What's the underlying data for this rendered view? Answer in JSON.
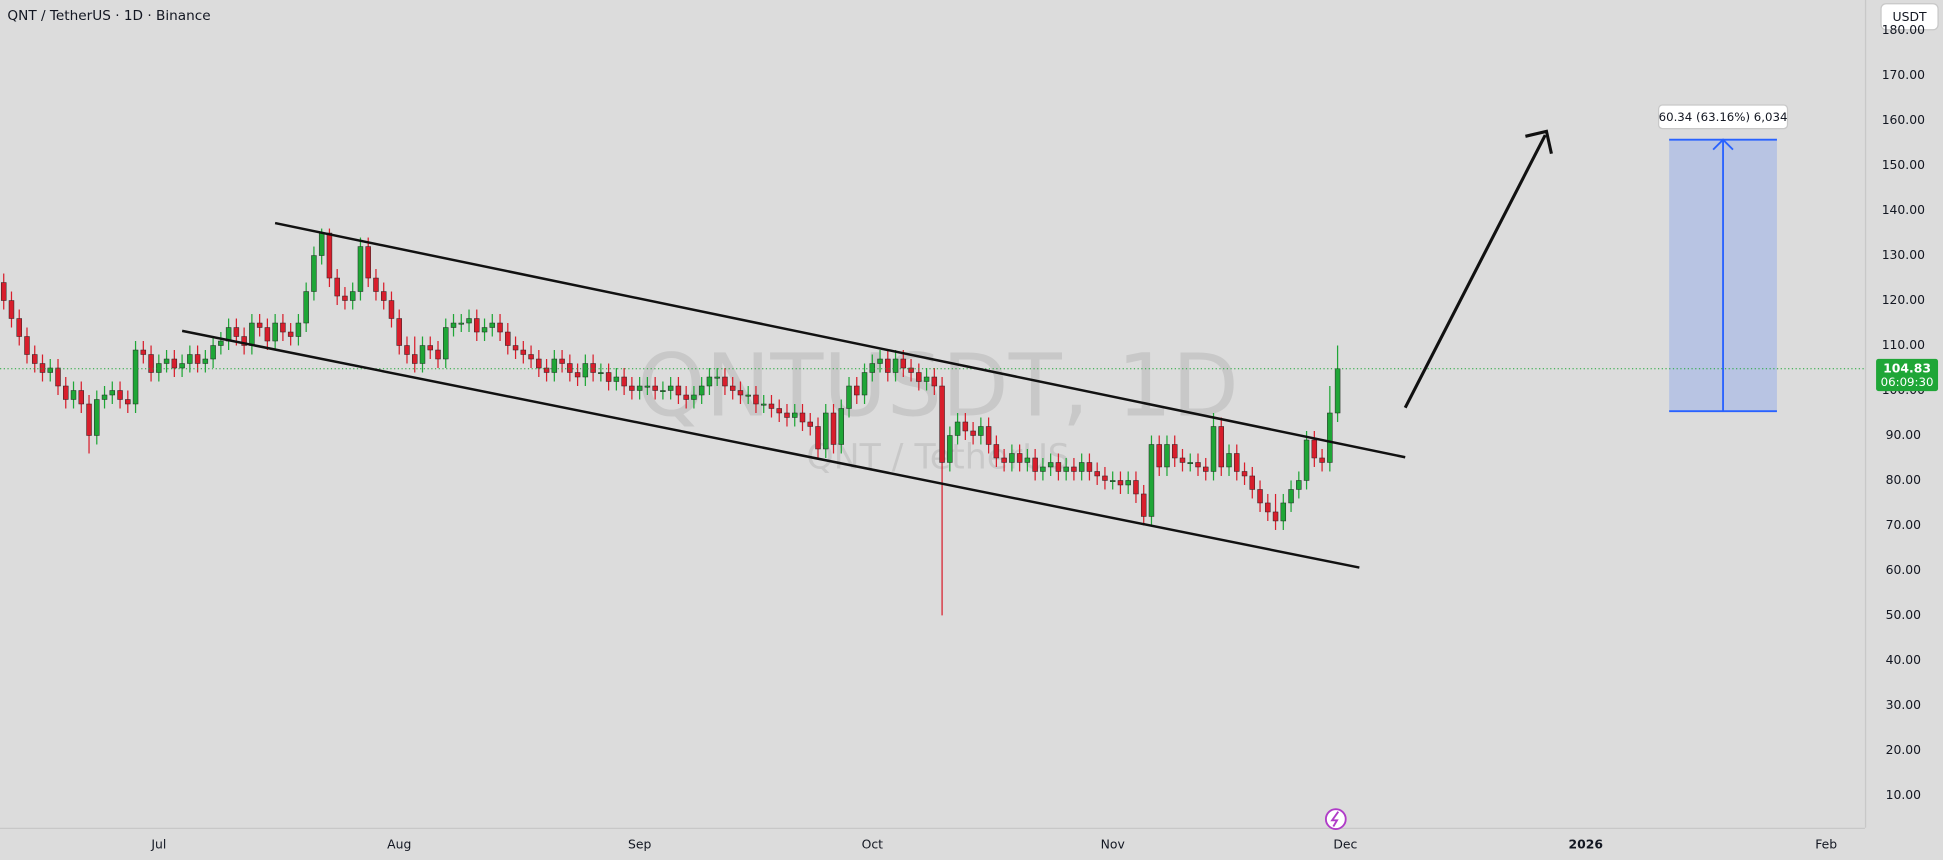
{
  "chart_data": {
    "type": "candlestick",
    "title": "QNT / TetherUS · 1D · Binance",
    "watermark": "QNTUSDT, 1D",
    "watermark_subtitle": "QNT / TetherUS",
    "currency": "USDT",
    "countdown": "06:09:30",
    "up_color": "#1fa637",
    "down_color": "#d81e2c",
    "grid": false,
    "open": [
      124,
      120,
      116,
      112,
      108,
      106,
      104,
      105,
      101,
      98,
      100,
      97,
      90,
      98,
      99,
      100,
      98,
      97,
      109,
      108,
      104,
      106,
      107,
      105,
      106,
      108,
      106,
      107,
      110,
      111,
      114,
      112,
      110,
      115,
      114,
      111,
      115,
      113,
      112,
      115,
      122,
      130,
      135,
      125,
      121,
      120,
      122,
      132,
      125,
      122,
      120,
      116,
      110,
      108,
      106,
      110,
      109,
      107,
      114,
      115,
      115,
      116,
      113,
      114,
      115,
      113,
      110,
      109,
      108,
      107,
      105,
      104,
      107,
      106,
      104,
      103,
      106,
      104,
      104,
      102,
      103,
      101,
      100,
      101,
      101,
      100,
      100,
      101,
      99,
      98,
      99,
      101,
      103,
      103,
      101,
      100,
      99,
      99,
      97,
      97,
      96,
      95,
      94,
      95,
      93,
      92,
      87,
      95,
      88,
      96,
      101,
      99,
      104,
      106,
      107,
      104,
      107,
      105,
      104,
      102,
      103,
      101,
      84,
      90,
      93,
      91,
      90,
      92,
      88,
      85,
      84,
      86,
      84,
      85,
      82,
      83,
      84,
      82,
      83,
      82,
      84,
      82,
      81,
      80,
      80,
      79,
      80,
      77,
      72,
      88,
      83,
      88,
      85,
      84,
      84,
      83,
      82,
      92,
      83,
      86,
      82,
      81,
      78,
      75,
      73,
      71,
      75,
      78,
      80,
      89,
      85,
      84,
      95
    ],
    "high": [
      126,
      122,
      118,
      114,
      110,
      108,
      107,
      107,
      103,
      102,
      102,
      99,
      100,
      101,
      102,
      102,
      100,
      111,
      111,
      110,
      108,
      109,
      109,
      108,
      110,
      110,
      109,
      112,
      113,
      116,
      116,
      114,
      117,
      117,
      116,
      117,
      117,
      115,
      117,
      124,
      132,
      136,
      136,
      127,
      123,
      124,
      134,
      134,
      127,
      124,
      122,
      118,
      112,
      112,
      112,
      112,
      111,
      116,
      117,
      117,
      118,
      118,
      116,
      117,
      117,
      115,
      112,
      111,
      110,
      109,
      107,
      109,
      109,
      108,
      106,
      108,
      108,
      106,
      106,
      105,
      105,
      103,
      103,
      103,
      103,
      102,
      103,
      103,
      101,
      101,
      103,
      105,
      105,
      105,
      103,
      102,
      101,
      101,
      99,
      99,
      98,
      97,
      97,
      97,
      95,
      94,
      97,
      97,
      98,
      103,
      103,
      106,
      108,
      109,
      109,
      109,
      109,
      107,
      106,
      105,
      105,
      103,
      92,
      95,
      95,
      93,
      94,
      94,
      90,
      87,
      88,
      88,
      87,
      87,
      85,
      86,
      86,
      85,
      85,
      86,
      86,
      84,
      83,
      82,
      82,
      82,
      82,
      79,
      90,
      90,
      90,
      90,
      87,
      86,
      86,
      85,
      95,
      94,
      88,
      88,
      84,
      83,
      80,
      77,
      77,
      77,
      80,
      82,
      91,
      91,
      87,
      101,
      110
    ],
    "low": [
      118,
      114,
      110,
      106,
      104,
      102,
      102,
      99,
      96,
      96,
      95,
      86,
      88,
      96,
      97,
      96,
      95,
      95,
      106,
      102,
      102,
      104,
      103,
      103,
      104,
      104,
      104,
      105,
      108,
      109,
      110,
      108,
      108,
      112,
      109,
      109,
      111,
      110,
      110,
      113,
      120,
      128,
      123,
      119,
      118,
      118,
      120,
      123,
      120,
      118,
      114,
      108,
      106,
      104,
      104,
      107,
      105,
      105,
      112,
      113,
      113,
      111,
      111,
      112,
      111,
      108,
      107,
      106,
      105,
      103,
      102,
      102,
      104,
      102,
      101,
      101,
      102,
      102,
      100,
      100,
      99,
      98,
      98,
      99,
      98,
      98,
      98,
      97,
      96,
      96,
      97,
      99,
      101,
      99,
      98,
      97,
      97,
      95,
      95,
      94,
      93,
      92,
      92,
      91,
      90,
      85,
      85,
      86,
      86,
      94,
      97,
      97,
      102,
      104,
      102,
      102,
      103,
      102,
      100,
      100,
      99,
      50,
      82,
      88,
      89,
      88,
      88,
      86,
      83,
      82,
      82,
      82,
      82,
      80,
      80,
      81,
      80,
      80,
      80,
      80,
      80,
      79,
      78,
      78,
      77,
      77,
      75,
      70,
      70,
      81,
      81,
      83,
      82,
      82,
      81,
      80,
      80,
      81,
      81,
      80,
      79,
      76,
      73,
      71,
      69,
      69,
      73,
      76,
      78,
      83,
      82,
      82,
      93
    ],
    "close": [
      120,
      116,
      112,
      108,
      106,
      104,
      105,
      101,
      98,
      100,
      97,
      90,
      98,
      99,
      100,
      98,
      97,
      109,
      108,
      104,
      106,
      107,
      105,
      106,
      108,
      106,
      107,
      110,
      111,
      114,
      112,
      110,
      115,
      114,
      111,
      115,
      113,
      112,
      115,
      122,
      130,
      135,
      125,
      121,
      120,
      122,
      132,
      125,
      122,
      120,
      116,
      110,
      108,
      106,
      110,
      109,
      107,
      114,
      115,
      115,
      116,
      113,
      114,
      115,
      113,
      110,
      109,
      108,
      107,
      105,
      104,
      107,
      106,
      104,
      103,
      106,
      104,
      104,
      102,
      103,
      101,
      100,
      101,
      101,
      100,
      100,
      101,
      99,
      98,
      99,
      101,
      103,
      103,
      101,
      100,
      99,
      99,
      97,
      97,
      96,
      95,
      94,
      95,
      93,
      92,
      87,
      95,
      88,
      96,
      101,
      99,
      104,
      106,
      107,
      104,
      107,
      105,
      104,
      102,
      103,
      101,
      84,
      90,
      93,
      91,
      90,
      92,
      88,
      85,
      84,
      86,
      84,
      85,
      82,
      83,
      84,
      82,
      83,
      82,
      84,
      82,
      81,
      80,
      80,
      79,
      80,
      77,
      72,
      88,
      83,
      88,
      85,
      84,
      84,
      83,
      82,
      92,
      83,
      86,
      82,
      81,
      78,
      75,
      73,
      71,
      75,
      78,
      80,
      89,
      85,
      84,
      95,
      104.83
    ],
    "xlim": [
      -0.48,
      240
    ],
    "xticks": [
      {
        "value": 20,
        "label": "Jul"
      },
      {
        "value": 51,
        "label": "Aug"
      },
      {
        "value": 82,
        "label": "Sep"
      },
      {
        "value": 112,
        "label": "Oct"
      },
      {
        "value": 143,
        "label": "Nov"
      },
      {
        "value": 173,
        "label": "Dec"
      },
      {
        "value": 204,
        "label": "2026"
      },
      {
        "value": 235,
        "label": "Feb"
      }
    ],
    "ylim": [
      2.8,
      186.8
    ],
    "yticks": [
      {
        "value": 10,
        "label": "10.00"
      },
      {
        "value": 20,
        "label": "20.00"
      },
      {
        "value": 30,
        "label": "30.00"
      },
      {
        "value": 40,
        "label": "40.00"
      },
      {
        "value": 50,
        "label": "50.00"
      },
      {
        "value": 60,
        "label": "60.00"
      },
      {
        "value": 70,
        "label": "70.00"
      },
      {
        "value": 80,
        "label": "80.00"
      },
      {
        "value": 90,
        "label": "90.00"
      },
      {
        "value": 100,
        "label": "100.00"
      },
      {
        "value": 110,
        "label": "110.00"
      },
      {
        "value": 120,
        "label": "120.00"
      },
      {
        "value": 130,
        "label": "130.00"
      },
      {
        "value": 140,
        "label": "140.00"
      },
      {
        "value": 150,
        "label": "150.00"
      },
      {
        "value": 160,
        "label": "160.00"
      },
      {
        "value": 170,
        "label": "170.00"
      },
      {
        "value": 180,
        "label": "180.00"
      }
    ],
    "measure": {
      "low": 95.4,
      "high": 155.74,
      "label": "60.34 (63.16%) 6,034"
    }
  }
}
